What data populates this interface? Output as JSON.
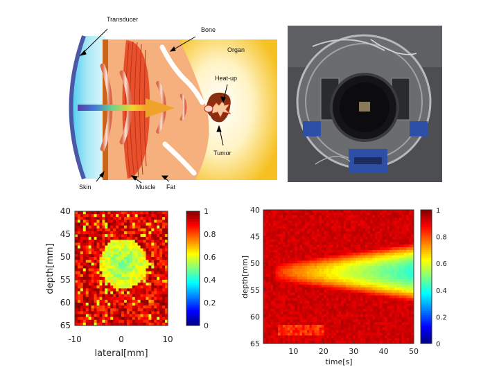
{
  "diagram": {
    "labels": {
      "transducer": "Transducer",
      "bone": "Bone",
      "organ": "Organ",
      "heatup": "Heat-up",
      "tumor": "Tumor",
      "skin": "Skin",
      "muscle": "Muscle",
      "fat": "Fat"
    }
  },
  "photo": {
    "icon": "ultrasound-apparatus-photo"
  },
  "chart_data": [
    {
      "type": "heatmap",
      "title": "",
      "xlabel": "lateral[mm]",
      "ylabel": "depth[mm]",
      "xlim": [
        -10,
        10
      ],
      "ylim": [
        65,
        40
      ],
      "x_ticks": [
        "-10",
        "0",
        "10"
      ],
      "y_ticks": [
        "40",
        "45",
        "50",
        "55",
        "60",
        "65"
      ],
      "colorbar": {
        "min": 0,
        "max": 1,
        "ticks": [
          "0",
          "0.2",
          "0.4",
          "0.6",
          "0.8",
          "1"
        ]
      },
      "colormap": "jet",
      "features": [
        {
          "description": "background",
          "value": 0.85
        },
        {
          "description": "low-value region centered",
          "x": 0.5,
          "y": 51.5,
          "value": 0.5
        }
      ]
    },
    {
      "type": "heatmap",
      "title": "",
      "xlabel": "time[s]",
      "ylabel": "depth[mm]",
      "xlim": [
        0,
        50
      ],
      "ylim": [
        65,
        40
      ],
      "x_ticks": [
        "10",
        "20",
        "30",
        "40",
        "50"
      ],
      "y_ticks": [
        "40",
        "45",
        "50",
        "55",
        "60",
        "65"
      ],
      "colorbar": {
        "min": 0,
        "max": 1,
        "ticks": [
          "0",
          "0.2",
          "0.4",
          "0.6",
          "0.8",
          "1"
        ]
      },
      "colormap": "jet",
      "features": [
        {
          "description": "background",
          "value": 0.92
        },
        {
          "description": "heated band widening over time",
          "depth_center": 52,
          "min_value_at_50s": 0.45
        }
      ]
    }
  ]
}
